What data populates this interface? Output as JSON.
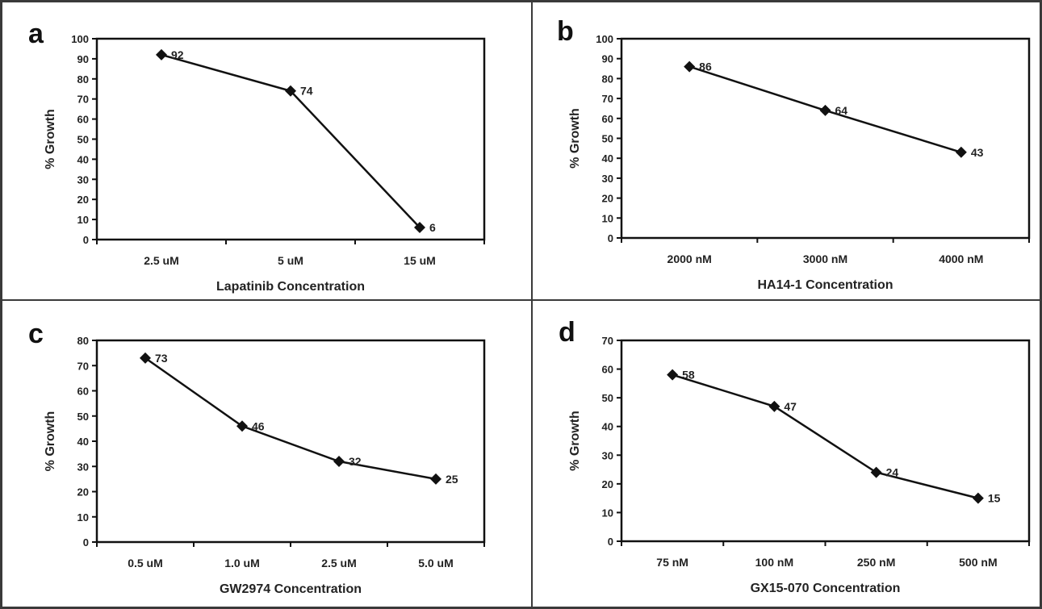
{
  "chart_data": [
    {
      "panel": "a",
      "type": "line",
      "title": "",
      "xlabel": "Lapatinib Concentration",
      "ylabel": "% Growth",
      "categories": [
        "2.5 uM",
        "5 uM",
        "15 uM"
      ],
      "series": [
        {
          "values": [
            92,
            74,
            6
          ]
        }
      ],
      "data_labels": [
        "92",
        "74",
        "6"
      ],
      "ylim": [
        0,
        100
      ],
      "yticks": [
        0,
        10,
        20,
        30,
        40,
        50,
        60,
        70,
        80,
        90,
        100
      ],
      "grid": false,
      "legend": "none"
    },
    {
      "panel": "b",
      "type": "line",
      "title": "",
      "xlabel": "HA14-1 Concentration",
      "ylabel": "% Growth",
      "categories": [
        "2000 nM",
        "3000 nM",
        "4000 nM"
      ],
      "series": [
        {
          "values": [
            86,
            64,
            43
          ]
        }
      ],
      "data_labels": [
        "86",
        "64",
        "43"
      ],
      "ylim": [
        0,
        100
      ],
      "yticks": [
        0,
        10,
        20,
        30,
        40,
        50,
        60,
        70,
        80,
        90,
        100
      ],
      "grid": false,
      "legend": "none"
    },
    {
      "panel": "c",
      "type": "line",
      "title": "",
      "xlabel": "GW2974 Concentration",
      "ylabel": "% Growth",
      "categories": [
        "0.5 uM",
        "1.0 uM",
        "2.5 uM",
        "5.0 uM"
      ],
      "series": [
        {
          "values": [
            73,
            46,
            32,
            25
          ]
        }
      ],
      "data_labels": [
        "73",
        "46",
        "32",
        "25"
      ],
      "ylim": [
        0,
        80
      ],
      "yticks": [
        0,
        10,
        20,
        30,
        40,
        50,
        60,
        70,
        80
      ],
      "grid": false,
      "legend": "none"
    },
    {
      "panel": "d",
      "type": "line",
      "title": "",
      "xlabel": "GX15-070 Concentration",
      "ylabel": "% Growth",
      "categories": [
        "75 nM",
        "100 nM",
        "250 nM",
        "500 nM"
      ],
      "series": [
        {
          "values": [
            58,
            47,
            24,
            15
          ]
        }
      ],
      "data_labels": [
        "58",
        "47",
        "24",
        "15"
      ],
      "ylim": [
        0,
        70
      ],
      "yticks": [
        0,
        10,
        20,
        30,
        40,
        50,
        60,
        70
      ],
      "grid": false,
      "legend": "none"
    }
  ]
}
